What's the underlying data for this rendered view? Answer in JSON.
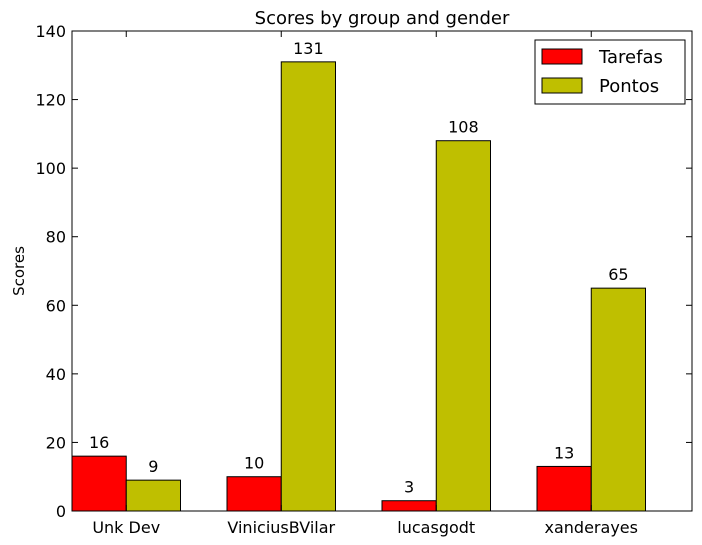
{
  "chart_data": {
    "type": "bar",
    "title": "Scores by group and gender",
    "xlabel": "",
    "ylabel": "Scores",
    "categories": [
      "Unk Dev",
      "ViniciusBVilar",
      "lucasgodt",
      "xanderayes"
    ],
    "series": [
      {
        "name": "Tarefas",
        "values": [
          16,
          10,
          3,
          13
        ],
        "color": "#ff0000"
      },
      {
        "name": "Pontos",
        "values": [
          9,
          131,
          108,
          65
        ],
        "color": "#bfbf00"
      }
    ],
    "ylim": [
      0,
      140
    ],
    "yticks": [
      0,
      20,
      40,
      60,
      80,
      100,
      120,
      140
    ],
    "grid": false,
    "legend_position": "top-right"
  }
}
